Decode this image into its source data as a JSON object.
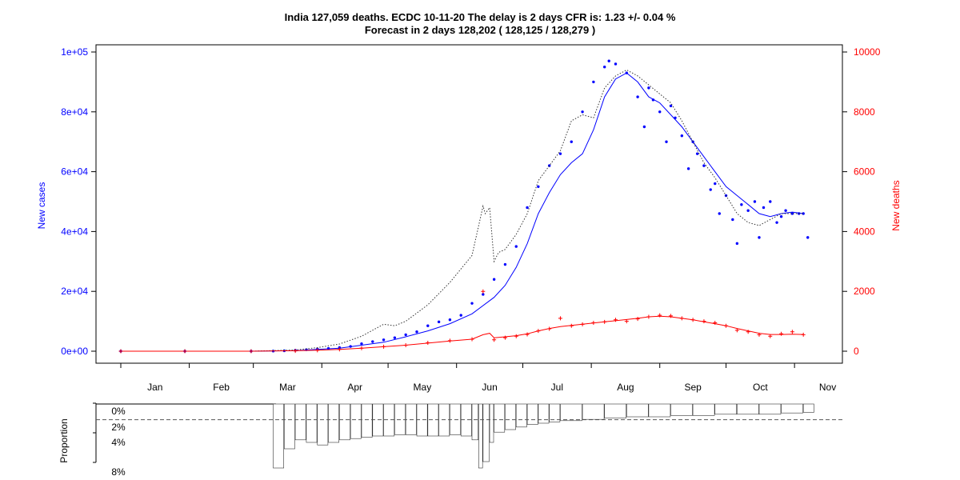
{
  "title_line1": "India 127,059 deaths. ECDC 10-11-20 The delay is 2 days CFR is: 1.23 +/- 0.04 %",
  "title_line2": "Forecast in 2 days 128,202 ( 128,125 / 128,279 )",
  "colors": {
    "cases": "#0000ff",
    "deaths": "#ff0000",
    "axis": "#000000",
    "dotted": "#333333"
  },
  "chart_data": [
    {
      "type": "line",
      "title": "India 127,059 deaths. ECDC 10-11-20 The delay is 2 days CFR is: 1.23 +/- 0.04 %",
      "subtitle": "Forecast in 2 days 128,202 ( 128,125 / 128,279 )",
      "x_unit": "day of 2020 (1 = Jan 1)",
      "month_labels": [
        "Jan",
        "Feb",
        "Mar",
        "Apr",
        "May",
        "Jun",
        "Jul",
        "Aug",
        "Sep",
        "Oct",
        "Nov"
      ],
      "xlim": [
        1,
        315
      ],
      "grid": false,
      "y_left": {
        "label": "New cases",
        "ylim": [
          0,
          100000
        ],
        "ticks": [
          0,
          20000,
          40000,
          60000,
          80000,
          100000
        ],
        "tick_labels": [
          "0e+00",
          "2e+04",
          "4e+04",
          "6e+04",
          "8e+04",
          "1e+05"
        ],
        "color": "#0000ff"
      },
      "y_right": {
        "label": "New deaths",
        "ylim": [
          0,
          10000
        ],
        "ticks": [
          0,
          2000,
          4000,
          6000,
          8000,
          10000
        ],
        "tick_labels": [
          "0",
          "2000",
          "4000",
          "6000",
          "8000",
          "10000"
        ],
        "color": "#ff0000"
      },
      "series": [
        {
          "key": "cases_daily",
          "axis": "left",
          "style": "points",
          "color": "#0000ff",
          "x": [
            1,
            30,
            60,
            70,
            75,
            80,
            85,
            90,
            95,
            100,
            105,
            110,
            115,
            120,
            125,
            130,
            135,
            140,
            145,
            150,
            155,
            160,
            165,
            170,
            175,
            180,
            185,
            190,
            195,
            200,
            205,
            210,
            215,
            220,
            222,
            225,
            230,
            235,
            238,
            240,
            242,
            245,
            248,
            250,
            252,
            255,
            258,
            260,
            262,
            265,
            268,
            270,
            272,
            275,
            278,
            280,
            282,
            285,
            288,
            290,
            292,
            295,
            298,
            300,
            302,
            305,
            308,
            310,
            312
          ],
          "y": [
            0,
            0,
            0,
            50,
            150,
            300,
            500,
            700,
            900,
            1200,
            1600,
            2500,
            3200,
            3800,
            4500,
            5500,
            6500,
            8500,
            9800,
            10500,
            12000,
            16000,
            19000,
            24000,
            29000,
            35000,
            48000,
            55000,
            62000,
            66000,
            70000,
            80000,
            90000,
            95000,
            97000,
            96000,
            93000,
            85000,
            75000,
            88000,
            84000,
            80000,
            70000,
            82000,
            78000,
            72000,
            61000,
            70000,
            66000,
            62000,
            54000,
            56000,
            46000,
            52000,
            44000,
            36000,
            49000,
            47000,
            50000,
            38000,
            48000,
            50000,
            43000,
            45000,
            47000,
            46000,
            46000,
            46000,
            38000
          ]
        },
        {
          "key": "cases_smoothed",
          "axis": "left",
          "style": "line",
          "color": "#0000ff",
          "x": [
            1,
            60,
            80,
            90,
            100,
            110,
            120,
            130,
            140,
            150,
            160,
            170,
            175,
            180,
            185,
            190,
            195,
            200,
            205,
            210,
            215,
            220,
            225,
            230,
            235,
            240,
            245,
            250,
            255,
            260,
            265,
            270,
            275,
            280,
            285,
            290,
            295,
            300,
            305,
            310
          ],
          "y": [
            0,
            0,
            200,
            600,
            1000,
            2000,
            3000,
            4800,
            6800,
            9200,
            12500,
            18000,
            22000,
            28000,
            36000,
            46000,
            53000,
            59000,
            63000,
            66000,
            74000,
            85000,
            91000,
            93000,
            90000,
            85000,
            83000,
            79000,
            75000,
            70000,
            65000,
            60000,
            55000,
            52000,
            49000,
            46000,
            45000,
            46000,
            46500,
            46000
          ]
        },
        {
          "key": "cases_scaled_deaths_dotted",
          "axis": "left",
          "style": "dotted",
          "color": "#333333",
          "x": [
            1,
            60,
            80,
            90,
            100,
            110,
            120,
            125,
            130,
            140,
            150,
            160,
            165,
            166,
            168,
            170,
            172,
            175,
            180,
            185,
            190,
            195,
            200,
            205,
            210,
            215,
            220,
            225,
            230,
            235,
            240,
            245,
            250,
            255,
            260,
            265,
            270,
            275,
            280,
            285,
            290,
            295,
            300,
            305,
            310
          ],
          "y": [
            0,
            0,
            400,
            1200,
            2400,
            5000,
            9000,
            8500,
            10000,
            15500,
            23000,
            32000,
            48500,
            46000,
            48000,
            30000,
            33000,
            34000,
            39000,
            46000,
            57000,
            62000,
            67000,
            77000,
            79000,
            78000,
            88000,
            92000,
            94000,
            92000,
            89000,
            86000,
            83000,
            77000,
            70000,
            63000,
            58000,
            52000,
            46000,
            43000,
            42000,
            44000,
            46000,
            46000,
            46000
          ]
        },
        {
          "key": "deaths_daily",
          "axis": "right",
          "style": "plus",
          "color": "#ff0000",
          "x": [
            1,
            30,
            60,
            80,
            90,
            100,
            110,
            120,
            130,
            140,
            150,
            160,
            165,
            170,
            175,
            180,
            185,
            190,
            195,
            200,
            205,
            210,
            215,
            220,
            225,
            230,
            235,
            240,
            245,
            250,
            255,
            260,
            265,
            270,
            275,
            280,
            285,
            290,
            295,
            300,
            305,
            310
          ],
          "y": [
            0,
            0,
            0,
            10,
            30,
            60,
            100,
            150,
            200,
            280,
            350,
            400,
            2000,
            380,
            450,
            500,
            560,
            680,
            750,
            1100,
            850,
            900,
            950,
            980,
            1050,
            1000,
            1080,
            1150,
            1200,
            1180,
            1100,
            1050,
            1000,
            950,
            850,
            700,
            650,
            550,
            500,
            580,
            650,
            550
          ]
        },
        {
          "key": "deaths_smoothed",
          "axis": "right",
          "style": "line",
          "color": "#ff0000",
          "x": [
            1,
            60,
            80,
            90,
            100,
            110,
            120,
            130,
            140,
            150,
            160,
            165,
            168,
            170,
            175,
            180,
            185,
            190,
            195,
            200,
            205,
            210,
            215,
            220,
            225,
            230,
            235,
            240,
            245,
            250,
            255,
            260,
            265,
            270,
            275,
            280,
            285,
            290,
            295,
            300,
            305,
            310
          ],
          "y": [
            0,
            0,
            15,
            35,
            60,
            100,
            150,
            200,
            270,
            340,
            400,
            550,
            600,
            450,
            480,
            520,
            580,
            680,
            760,
            820,
            860,
            900,
            940,
            980,
            1020,
            1060,
            1100,
            1150,
            1170,
            1150,
            1100,
            1050,
            980,
            920,
            850,
            760,
            680,
            600,
            560,
            560,
            570,
            560
          ]
        }
      ]
    },
    {
      "type": "bar",
      "ylabel": "Proportion",
      "tick_labels": [
        "0%",
        "2%",
        "4%",
        "8%"
      ],
      "reference_line": 0.0123,
      "reference_style": "dashed",
      "x_unit": "day of 2020 (1 = Jan 1)",
      "x": [
        1,
        65,
        70,
        75,
        80,
        85,
        90,
        95,
        100,
        105,
        110,
        115,
        120,
        125,
        130,
        135,
        140,
        145,
        150,
        155,
        160,
        163,
        165,
        168,
        170,
        175,
        180,
        185,
        190,
        195,
        200,
        210,
        220,
        230,
        240,
        250,
        260,
        270,
        280,
        290,
        300,
        310
      ],
      "values": [
        0,
        0,
        0.05,
        0.035,
        0.028,
        0.03,
        0.032,
        0.03,
        0.028,
        0.027,
        0.026,
        0.025,
        0.025,
        0.024,
        0.024,
        0.025,
        0.025,
        0.025,
        0.024,
        0.025,
        0.028,
        0.05,
        0.045,
        0.03,
        0.022,
        0.02,
        0.018,
        0.016,
        0.015,
        0.014,
        0.013,
        0.012,
        0.011,
        0.01,
        0.01,
        0.009,
        0.009,
        0.008,
        0.008,
        0.008,
        0.007,
        0.0065
      ]
    }
  ]
}
